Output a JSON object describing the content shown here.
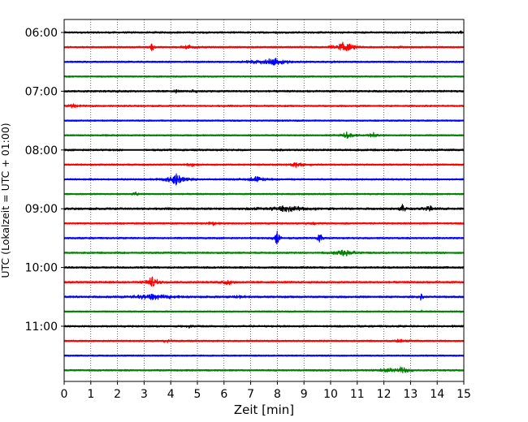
{
  "chart_data": {
    "type": "line",
    "title": "",
    "xlabel": "Zeit  [min]",
    "ylabel": "UTC (Lokalzeit = UTC + 01:00)",
    "xlim": [
      0,
      15
    ],
    "x_ticks": [
      "0",
      "1",
      "2",
      "3",
      "4",
      "5",
      "6",
      "7",
      "8",
      "9",
      "10",
      "11",
      "12",
      "13",
      "14",
      "15"
    ],
    "y_ticks": [
      {
        "label": "06:00",
        "row": 0
      },
      {
        "label": "07:00",
        "row": 4
      },
      {
        "label": "08:00",
        "row": 8
      },
      {
        "label": "09:00",
        "row": 12
      },
      {
        "label": "10:00",
        "row": 16
      },
      {
        "label": "11:00",
        "row": 20
      }
    ],
    "grid": "vertical dotted at each minute",
    "trace_colors": [
      "#000000",
      "#ff0000",
      "#0000ff",
      "#008000"
    ],
    "traces": [
      {
        "start": "06:00",
        "color": "#000000",
        "noise": 0.5,
        "events": [
          [
            14.9,
            1.2,
            0.05
          ]
        ]
      },
      {
        "start": "06:15",
        "color": "#ff0000",
        "noise": 0.45,
        "events": [
          [
            3.3,
            3.5,
            0.06
          ],
          [
            4.7,
            1.2,
            0.25
          ],
          [
            10.5,
            3.0,
            0.3
          ],
          [
            12.6,
            0.8,
            0.1
          ]
        ]
      },
      {
        "start": "06:30",
        "color": "#0000ff",
        "noise": 0.45,
        "events": [
          [
            7.9,
            2.0,
            0.45
          ],
          [
            7.2,
            0.9,
            0.3
          ],
          [
            10.1,
            0.6,
            0.2
          ]
        ]
      },
      {
        "start": "06:45",
        "color": "#008000",
        "noise": 0.4,
        "events": []
      },
      {
        "start": "07:00",
        "color": "#000000",
        "noise": 0.5,
        "events": [
          [
            4.2,
            1.2,
            0.06
          ],
          [
            4.9,
            0.9,
            0.1
          ],
          [
            2.1,
            0.6,
            0.1
          ]
        ]
      },
      {
        "start": "07:15",
        "color": "#ff0000",
        "noise": 0.45,
        "events": [
          [
            0.3,
            1.2,
            0.2
          ]
        ]
      },
      {
        "start": "07:30",
        "color": "#0000ff",
        "noise": 0.4,
        "events": []
      },
      {
        "start": "07:45",
        "color": "#008000",
        "noise": 0.4,
        "events": [
          [
            10.6,
            1.8,
            0.2
          ],
          [
            11.6,
            1.5,
            0.12
          ],
          [
            1.6,
            0.7,
            0.1
          ]
        ]
      },
      {
        "start": "08:00",
        "color": "#000000",
        "noise": 0.5,
        "events": [],
        "gaps": [
          [
            2.2,
            3.0
          ],
          [
            7.0,
            7.7
          ]
        ]
      },
      {
        "start": "08:15",
        "color": "#ff0000",
        "noise": 0.45,
        "events": [
          [
            8.7,
            1.5,
            0.25
          ],
          [
            4.8,
            0.9,
            0.2
          ]
        ]
      },
      {
        "start": "08:30",
        "color": "#0000ff",
        "noise": 0.45,
        "events": [
          [
            4.2,
            3.5,
            0.3
          ],
          [
            7.2,
            1.8,
            0.3
          ]
        ]
      },
      {
        "start": "08:45",
        "color": "#008000",
        "noise": 0.4,
        "events": [
          [
            2.7,
            1.5,
            0.1
          ]
        ]
      },
      {
        "start": "09:00",
        "color": "#000000",
        "noise": 0.55,
        "events": [
          [
            8.4,
            1.4,
            0.9
          ],
          [
            12.7,
            2.5,
            0.1
          ],
          [
            13.7,
            1.5,
            0.2
          ]
        ]
      },
      {
        "start": "09:15",
        "color": "#ff0000",
        "noise": 0.45,
        "events": [
          [
            5.6,
            1.3,
            0.15
          ],
          [
            9.3,
            0.8,
            0.25
          ]
        ]
      },
      {
        "start": "09:30",
        "color": "#0000ff",
        "noise": 0.45,
        "events": [
          [
            8.0,
            5.0,
            0.08
          ],
          [
            9.6,
            4.0,
            0.06
          ]
        ]
      },
      {
        "start": "09:45",
        "color": "#008000",
        "noise": 0.45,
        "events": [
          [
            10.5,
            2.5,
            0.3
          ]
        ]
      },
      {
        "start": "10:00",
        "color": "#000000",
        "noise": 0.5,
        "events": []
      },
      {
        "start": "10:15",
        "color": "#ff0000",
        "noise": 0.5,
        "events": [
          [
            3.3,
            3.0,
            0.2
          ],
          [
            6.1,
            2.0,
            0.15
          ]
        ]
      },
      {
        "start": "10:30",
        "color": "#0000ff",
        "noise": 0.5,
        "events": [
          [
            3.2,
            1.8,
            0.6
          ],
          [
            6.5,
            1.0,
            0.3
          ],
          [
            13.4,
            2.2,
            0.05
          ]
        ]
      },
      {
        "start": "10:45",
        "color": "#008000",
        "noise": 0.4,
        "events": [
          [
            13.4,
            0.8,
            0.05
          ],
          [
            14.9,
            0.8,
            0.05
          ]
        ]
      },
      {
        "start": "11:00",
        "color": "#000000",
        "noise": 0.5,
        "events": [
          [
            14.6,
            1.0,
            0.05
          ],
          [
            4.7,
            0.8,
            0.1
          ]
        ]
      },
      {
        "start": "11:15",
        "color": "#ff0000",
        "noise": 0.45,
        "events": [
          [
            3.8,
            1.1,
            0.15
          ],
          [
            12.6,
            1.0,
            0.2
          ]
        ]
      },
      {
        "start": "11:30",
        "color": "#0000ff",
        "noise": 0.4,
        "events": []
      },
      {
        "start": "11:45",
        "color": "#008000",
        "noise": 0.45,
        "events": [
          [
            12.7,
            2.2,
            0.2
          ],
          [
            12.2,
            1.2,
            0.3
          ]
        ]
      }
    ]
  }
}
